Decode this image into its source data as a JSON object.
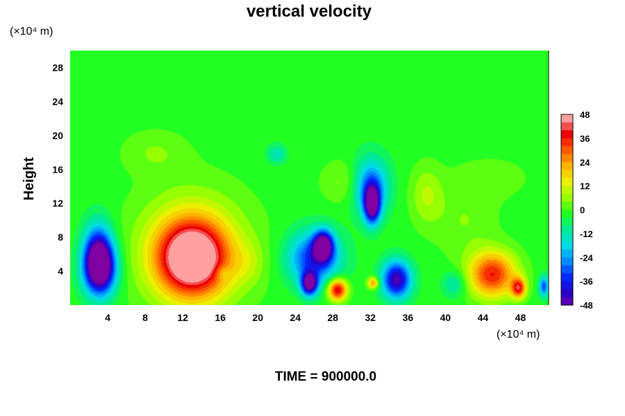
{
  "chart_data": {
    "type": "heatmap",
    "title": "vertical velocity",
    "ylabel": "Height",
    "y_unit_label": "(×10⁴ m)",
    "x_unit_label": "(×10⁴ m)",
    "footer": "TIME = 900000.0",
    "xlim": [
      0,
      51
    ],
    "ylim": [
      0,
      30
    ],
    "x_ticks": [
      4,
      8,
      12,
      16,
      20,
      24,
      28,
      32,
      36,
      40,
      44,
      48
    ],
    "y_ticks": [
      4,
      8,
      12,
      16,
      20,
      24,
      28
    ],
    "colorbar": {
      "min": -48,
      "max": 48,
      "ticks": [
        48,
        36,
        24,
        12,
        0,
        -12,
        -24,
        -36,
        -48
      ]
    },
    "background_value": 0,
    "features": [
      {
        "x": 3.2,
        "y": 4.2,
        "rx": 2.0,
        "ry": 3.6,
        "value": -48
      },
      {
        "x": 3.0,
        "y": 6.2,
        "rx": 1.8,
        "ry": 4.2,
        "value": -34
      },
      {
        "x": 13.0,
        "y": 5.5,
        "rx": 4.2,
        "ry": 5.0,
        "value": 52
      },
      {
        "x": 13.0,
        "y": 6.5,
        "rx": 7.0,
        "ry": 8.0,
        "value": 18
      },
      {
        "x": 25.5,
        "y": 2.5,
        "rx": 1.0,
        "ry": 1.6,
        "value": -48
      },
      {
        "x": 26.0,
        "y": 5.5,
        "rx": 3.2,
        "ry": 3.6,
        "value": -34
      },
      {
        "x": 27.0,
        "y": 7.0,
        "rx": 1.2,
        "ry": 2.0,
        "value": -48
      },
      {
        "x": 28.5,
        "y": 1.8,
        "rx": 1.2,
        "ry": 1.5,
        "value": 44
      },
      {
        "x": 32.2,
        "y": 11.8,
        "rx": 1.0,
        "ry": 2.6,
        "value": -48
      },
      {
        "x": 32.0,
        "y": 14.0,
        "rx": 2.2,
        "ry": 3.8,
        "value": -30
      },
      {
        "x": 32.3,
        "y": 2.6,
        "rx": 0.7,
        "ry": 0.8,
        "value": 28
      },
      {
        "x": 34.8,
        "y": 3.0,
        "rx": 1.8,
        "ry": 2.6,
        "value": -44
      },
      {
        "x": 45.0,
        "y": 3.6,
        "rx": 3.0,
        "ry": 3.2,
        "value": 38
      },
      {
        "x": 47.8,
        "y": 2.0,
        "rx": 0.9,
        "ry": 1.4,
        "value": 36
      },
      {
        "x": 50.5,
        "y": 2.2,
        "rx": 0.6,
        "ry": 1.4,
        "value": -30
      },
      {
        "x": 22.0,
        "y": 17.8,
        "rx": 1.2,
        "ry": 1.3,
        "value": -12
      },
      {
        "x": 29.5,
        "y": 14.5,
        "rx": 3.0,
        "ry": 3.0,
        "value": 8
      },
      {
        "x": 42.0,
        "y": 10.0,
        "rx": 4.0,
        "ry": 5.0,
        "value": 6
      },
      {
        "x": 38.0,
        "y": 13.0,
        "rx": 2.0,
        "ry": 4.0,
        "value": 10
      },
      {
        "x": 45.0,
        "y": 15.0,
        "rx": 5.0,
        "ry": 3.0,
        "value": 4
      },
      {
        "x": 16.2,
        "y": 3.8,
        "rx": 0.9,
        "ry": 1.0,
        "value": -8
      },
      {
        "x": 19.0,
        "y": 5.0,
        "rx": 2.0,
        "ry": 3.0,
        "value": 6
      },
      {
        "x": 9.0,
        "y": 18.0,
        "rx": 4.0,
        "ry": 3.0,
        "value": 6
      },
      {
        "x": 41.0,
        "y": 2.5,
        "rx": 1.5,
        "ry": 1.8,
        "value": -12
      }
    ]
  }
}
